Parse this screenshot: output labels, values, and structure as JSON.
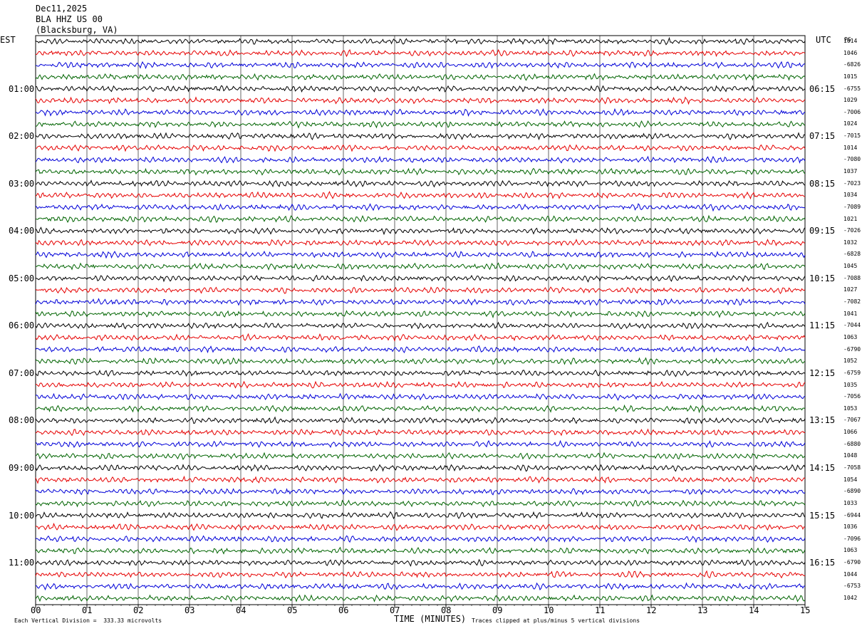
{
  "header": {
    "date": "Dec11,2025",
    "station": "BLA HHZ US 00",
    "location": "(Blacksburg, VA)"
  },
  "left_tz": "EST",
  "right_tz": "UTC",
  "right_col_header": "PG",
  "left_hours": [
    "01:00",
    "02:00",
    "03:00",
    "04:00",
    "05:00",
    "06:00",
    "07:00",
    "08:00",
    "09:00",
    "10:00",
    "11:00"
  ],
  "right_hours": [
    "06:15",
    "07:15",
    "08:15",
    "09:15",
    "10:15",
    "11:15",
    "12:15",
    "13:15",
    "14:15",
    "15:15",
    "16:15"
  ],
  "x_ticks": [
    "00",
    "01",
    "02",
    "03",
    "04",
    "05",
    "06",
    "07",
    "08",
    "09",
    "10",
    "11",
    "12",
    "13",
    "14",
    "15"
  ],
  "x_axis_title": "TIME (MINUTES)",
  "footnote_left": "Each Vertical Division =  333.33 microvolts",
  "footnote_right": "Traces clipped at plus/minus 5 vertical divisions",
  "trace_values": [
    "1014",
    "1046",
    "-6826",
    "1015",
    "-6755",
    "1029",
    "-7006",
    "1024",
    "-7015",
    "1014",
    "-7080",
    "1037",
    "-7023",
    "1034",
    "-7089",
    "1021",
    "-7026",
    "1032",
    "-6828",
    "1045",
    "-7088",
    "1027",
    "-7082",
    "1041",
    "-7044",
    "1063",
    "-6790",
    "1052",
    "-6759",
    "1035",
    "-7056",
    "1053",
    "-7067",
    "1066",
    "-6880",
    "1048",
    "-7058",
    "1054",
    "-6890",
    "1033",
    "-6944",
    "1036",
    "-7096",
    "1063",
    "-6790",
    "1044",
    "-6753",
    "1042"
  ],
  "colors": {
    "black": "#000000",
    "red": "#e60000",
    "blue": "#0000d8",
    "green": "#006400"
  },
  "chart_data": {
    "type": "line",
    "title": "Dec11,2025 BLA HHZ US 00 (Blacksburg, VA)",
    "xlabel": "TIME (MINUTES)",
    "xlim": [
      0,
      15
    ],
    "rows": 48,
    "minutes_per_row": 15,
    "color_cycle": [
      "black",
      "red",
      "blue",
      "green"
    ],
    "clip_divisions": 5,
    "microvolts_per_division": 333.33
  }
}
